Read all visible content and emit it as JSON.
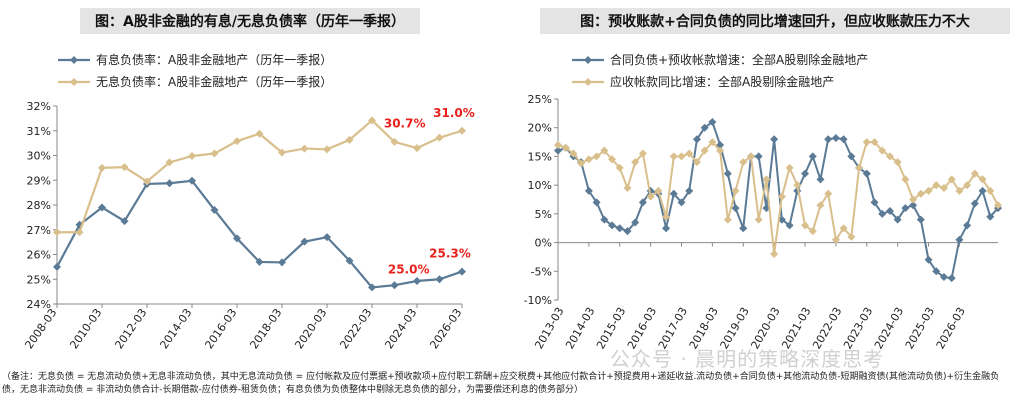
{
  "watermark": "公众号 · 晨明的策略深度思考",
  "footnote": "（备注：无息负债 = 无息流动负债+无息非流动负债，其中无息流动负债 = 应付帐款及应付票据+预收款项+应付职工薪酬+应交税费+其他应付款合计+预提费用+递延收益.流动负债+合同负债+其他流动负债-短期融资债(其他流动负债)+衍生金融负债，无息非流动负债 = 非流动负债合计-长期借款-应付债券-租赁负债；有息负债为负债整体中剔除无息负债的部分，为需要偿还利息的债务部分）",
  "colors": {
    "blue": "#5a7a95",
    "tan": "#d9bf8c",
    "red": "#e8211c",
    "axis": "#888888"
  },
  "chart_data": [
    {
      "type": "line",
      "title": "图：A股非金融的有息/无息负债率（历年一季报）",
      "ylim": [
        0.24,
        0.32
      ],
      "yticks": [
        "24%",
        "25%",
        "26%",
        "27%",
        "28%",
        "29%",
        "30%",
        "31%",
        "32%"
      ],
      "xticks": [
        "2008-03",
        "2010-03",
        "2012-03",
        "2014-03",
        "2016-03",
        "2018-03",
        "2020-03",
        "2022-03",
        "2024-03",
        "2026-03"
      ],
      "x": [
        2008,
        2009,
        2010,
        2011,
        2012,
        2013,
        2014,
        2015,
        2016,
        2017,
        2018,
        2019,
        2020,
        2021,
        2022,
        2023,
        2024,
        2025,
        2026
      ],
      "legend": "top-left",
      "series": [
        {
          "name": "有息负债率：A股非金融地产（历年一季报）",
          "color": "#5a7a95",
          "values": [
            0.255,
            0.272,
            0.279,
            0.2735,
            0.2885,
            0.2888,
            0.2898,
            0.278,
            0.2665,
            0.257,
            0.2568,
            0.2652,
            0.267,
            0.2575,
            0.2467,
            0.2476,
            0.2493,
            0.25,
            0.2531
          ]
        },
        {
          "name": "无息负债率：A股非金融地产（历年一季报）",
          "color": "#d9bf8c",
          "values": [
            0.269,
            0.269,
            0.295,
            0.2953,
            0.2895,
            0.2972,
            0.2998,
            0.3008,
            0.3058,
            0.3088,
            0.3012,
            0.3028,
            0.3025,
            0.3063,
            0.3142,
            0.3055,
            0.303,
            0.3072,
            0.31
          ]
        }
      ],
      "annotations": [
        {
          "text": "31.0%",
          "series": 1,
          "index": 18
        },
        {
          "text": "30.7%",
          "series": 1,
          "index": 17
        },
        {
          "text": "25.3%",
          "series": 0,
          "index": 18
        },
        {
          "text": "25.0%",
          "series": 0,
          "index": 17
        }
      ]
    },
    {
      "type": "line",
      "title": "图：预收账款+合同负债的同比增速回升，但应收账款压力不大",
      "ylim": [
        -0.1,
        0.25
      ],
      "yticks": [
        "-10%",
        "-5%",
        "0%",
        "5%",
        "10%",
        "15%",
        "20%",
        "25%"
      ],
      "xticks": [
        "2013-03",
        "2014-03",
        "2015-03",
        "2016-03",
        "2017-03",
        "2018-03",
        "2019-03",
        "2020-03",
        "2021-03",
        "2022-03",
        "2023-03",
        "2024-03",
        "2025-03",
        "2026-03"
      ],
      "xstart": 2013.0,
      "xstep": 0.25,
      "legend": "top-left",
      "series": [
        {
          "name": "合同负债+预收帐款增速：全部A股剔除金融地产",
          "color": "#5a7a95",
          "values": [
            0.16,
            0.165,
            0.15,
            0.14,
            0.09,
            0.07,
            0.04,
            0.03,
            0.025,
            0.02,
            0.035,
            0.07,
            0.09,
            0.085,
            0.025,
            0.085,
            0.07,
            0.09,
            0.18,
            0.2,
            0.21,
            0.17,
            0.12,
            0.06,
            0.025,
            0.15,
            0.15,
            0.06,
            0.18,
            0.04,
            0.03,
            0.09,
            0.12,
            0.15,
            0.11,
            0.18,
            0.182,
            0.18,
            0.15,
            0.13,
            0.12,
            0.07,
            0.05,
            0.055,
            0.04,
            0.06,
            0.065,
            0.04,
            -0.03,
            -0.05,
            -0.06,
            -0.062,
            0.005,
            0.03,
            0.068,
            0.09,
            0.045,
            0.06
          ]
        },
        {
          "name": "应收帐款同比增速：全部A股剔除金融地产",
          "color": "#d9bf8c",
          "values": [
            0.17,
            0.165,
            0.155,
            0.138,
            0.145,
            0.15,
            0.16,
            0.145,
            0.13,
            0.095,
            0.14,
            0.155,
            0.08,
            0.09,
            0.045,
            0.15,
            0.15,
            0.155,
            0.14,
            0.16,
            0.175,
            0.16,
            0.04,
            0.09,
            0.14,
            0.15,
            0.04,
            0.11,
            -0.02,
            0.08,
            0.13,
            0.1,
            0.03,
            0.02,
            0.065,
            0.085,
            0.005,
            0.025,
            0.01,
            0.13,
            0.175,
            0.175,
            0.16,
            0.15,
            0.14,
            0.11,
            0.075,
            0.085,
            0.09,
            0.1,
            0.095,
            0.11,
            0.09,
            0.1,
            0.12,
            0.11,
            0.09,
            0.065
          ]
        }
      ]
    }
  ]
}
